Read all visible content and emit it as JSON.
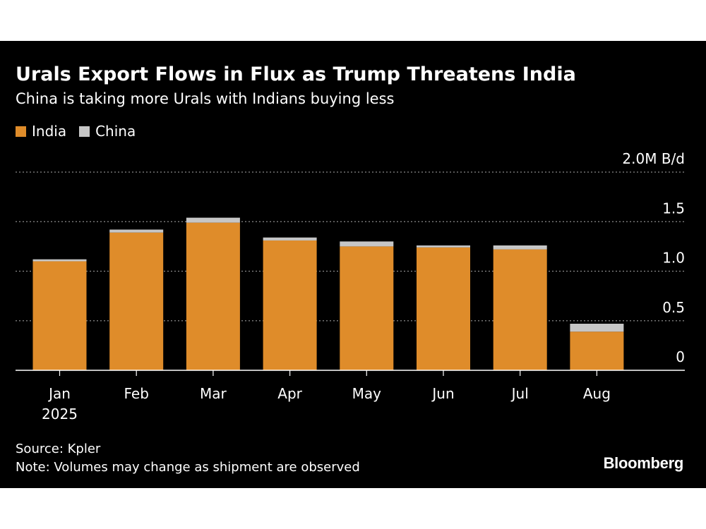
{
  "header": {
    "title": "Urals Export Flows in Flux as Trump Threatens India",
    "subtitle": "China is taking more Urals with Indians buying less"
  },
  "colors": {
    "india": "#df8c2a",
    "china": "#c6c6c6",
    "background": "#000000"
  },
  "footer": {
    "source": "Source: Kpler",
    "note": "Note: Volumes may change as shipment are observed",
    "brand": "Bloomberg"
  },
  "chart_data": {
    "type": "bar",
    "stacked": true,
    "categories": [
      "Jan",
      "Feb",
      "Mar",
      "Apr",
      "May",
      "Jun",
      "Jul",
      "Aug"
    ],
    "category_sublabels": [
      "2025",
      "",
      "",
      "",
      "",
      "",
      "",
      ""
    ],
    "series": [
      {
        "name": "India",
        "values": [
          1.1,
          1.39,
          1.49,
          1.31,
          1.25,
          1.24,
          1.22,
          0.39
        ]
      },
      {
        "name": "China",
        "values": [
          0.02,
          0.03,
          0.05,
          0.03,
          0.05,
          0.02,
          0.04,
          0.08
        ]
      }
    ],
    "y_ticks": [
      {
        "value": 0,
        "label": "0"
      },
      {
        "value": 0.5,
        "label": "0.5"
      },
      {
        "value": 1.0,
        "label": "1.0"
      },
      {
        "value": 1.5,
        "label": "1.5"
      },
      {
        "value": 2.0,
        "label": "2.0M B/d"
      }
    ],
    "ylim": [
      0,
      2.0
    ],
    "grid": true,
    "legend_position": "top-left"
  }
}
